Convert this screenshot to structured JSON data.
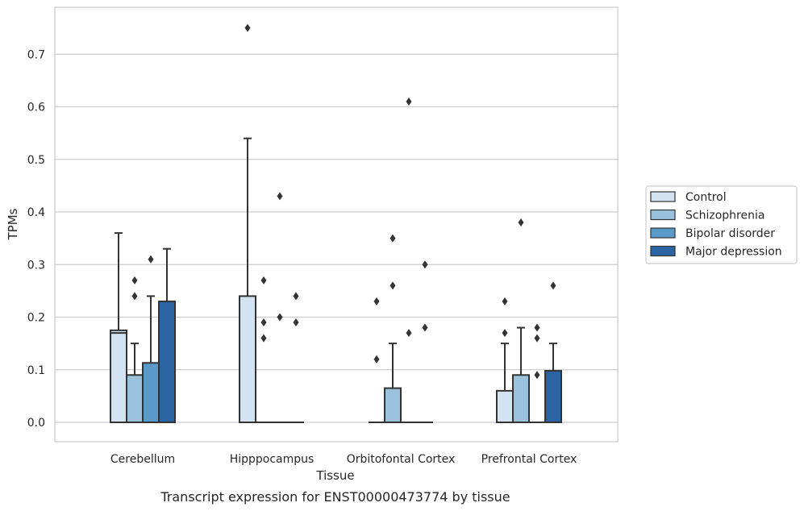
{
  "caption": "Transcript expression for ENST00000473774 by tissue",
  "chart_data": {
    "type": "box",
    "xlabel": "Tissue",
    "ylabel": "TPMs",
    "ylim": [
      -0.037,
      0.79
    ],
    "yticks": [
      "0.0",
      "0.1",
      "0.2",
      "0.3",
      "0.4",
      "0.5",
      "0.6",
      "0.7"
    ],
    "grid": "horizontal",
    "legend_position": "right",
    "categories": [
      "Cerebellum",
      "Hipppocampus",
      "Orbitofontal Cortex",
      "Prefrontal Cortex"
    ],
    "series": [
      {
        "name": "Control",
        "color": "#d3e3f1",
        "boxes": [
          {
            "q1": 0,
            "median": 0.17,
            "q3": 0.175,
            "whisker_low": 0,
            "whisker_high": 0.36,
            "outliers": []
          },
          {
            "q1": 0,
            "median": 0,
            "q3": 0.24,
            "whisker_low": 0,
            "whisker_high": 0.54,
            "outliers": [
              0.75
            ]
          },
          {
            "q1": 0,
            "median": 0,
            "q3": 0,
            "whisker_low": 0,
            "whisker_high": 0,
            "outliers": [
              0.12,
              0.23
            ]
          },
          {
            "q1": 0,
            "median": 0,
            "q3": 0.06,
            "whisker_low": 0,
            "whisker_high": 0.15,
            "outliers": [
              0.17,
              0.23
            ]
          }
        ]
      },
      {
        "name": "Schizophrenia",
        "color": "#9ac2dc",
        "boxes": [
          {
            "q1": 0,
            "median": 0,
            "q3": 0.09,
            "whisker_low": 0,
            "whisker_high": 0.15,
            "outliers": [
              0.24,
              0.27
            ]
          },
          {
            "q1": 0,
            "median": 0,
            "q3": 0,
            "whisker_low": 0,
            "whisker_high": 0,
            "outliers": [
              0.16,
              0.19,
              0.27
            ]
          },
          {
            "q1": 0,
            "median": 0,
            "q3": 0.065,
            "whisker_low": 0,
            "whisker_high": 0.15,
            "outliers": [
              0.26,
              0.35
            ]
          },
          {
            "q1": 0,
            "median": 0,
            "q3": 0.09,
            "whisker_low": 0,
            "whisker_high": 0.18,
            "outliers": [
              0.38
            ]
          }
        ]
      },
      {
        "name": "Bipolar disorder",
        "color": "#5a9ac8",
        "boxes": [
          {
            "q1": 0,
            "median": 0,
            "q3": 0.113,
            "whisker_low": 0,
            "whisker_high": 0.24,
            "outliers": [
              0.31
            ]
          },
          {
            "q1": 0,
            "median": 0,
            "q3": 0,
            "whisker_low": 0,
            "whisker_high": 0,
            "outliers": [
              0.2,
              0.43
            ]
          },
          {
            "q1": 0,
            "median": 0,
            "q3": 0,
            "whisker_low": 0,
            "whisker_high": 0,
            "outliers": [
              0.17,
              0.61
            ]
          },
          {
            "q1": 0,
            "median": 0,
            "q3": 0,
            "whisker_low": 0,
            "whisker_high": 0,
            "outliers": [
              0.09,
              0.16,
              0.18
            ]
          }
        ]
      },
      {
        "name": "Major depression",
        "color": "#2a64a2",
        "boxes": [
          {
            "q1": 0,
            "median": 0,
            "q3": 0.23,
            "whisker_low": 0,
            "whisker_high": 0.33,
            "outliers": []
          },
          {
            "q1": 0,
            "median": 0,
            "q3": 0,
            "whisker_low": 0,
            "whisker_high": 0,
            "outliers": [
              0.19,
              0.24
            ]
          },
          {
            "q1": 0,
            "median": 0,
            "q3": 0,
            "whisker_low": 0,
            "whisker_high": 0,
            "outliers": [
              0.18,
              0.3
            ]
          },
          {
            "q1": 0,
            "median": 0,
            "q3": 0.098,
            "whisker_low": 0,
            "whisker_high": 0.15,
            "outliers": [
              0.26
            ]
          }
        ]
      }
    ]
  }
}
